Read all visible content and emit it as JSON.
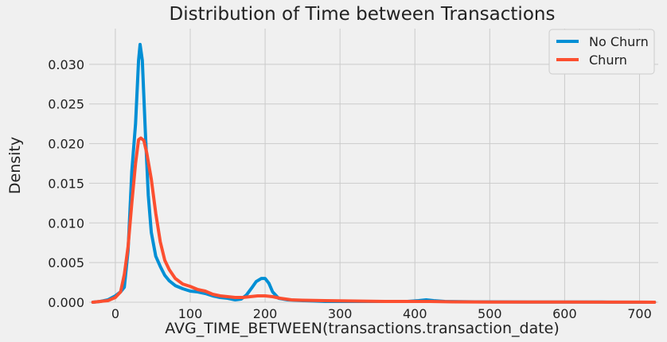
{
  "chart_data": {
    "type": "line",
    "title": "Distribution of Time between Transactions",
    "xlabel": "AVG_TIME_BETWEEN(transactions.transaction_date)",
    "ylabel": "Density",
    "xlim": [
      -35,
      725
    ],
    "ylim": [
      0,
      0.0345
    ],
    "xticks": [
      0,
      100,
      200,
      300,
      400,
      500,
      600,
      700
    ],
    "xtick_labels": [
      "0",
      "100",
      "200",
      "300",
      "400",
      "500",
      "600",
      "700"
    ],
    "yticks": [
      0,
      0.005,
      0.01,
      0.015,
      0.02,
      0.025,
      0.03
    ],
    "ytick_labels": [
      "0.000",
      "0.005",
      "0.010",
      "0.015",
      "0.020",
      "0.025",
      "0.030"
    ],
    "grid": true,
    "legend_position": "top-right",
    "series": [
      {
        "name": "No Churn",
        "color": "#008fd5",
        "points": [
          [
            -30,
            0
          ],
          [
            -20,
            0.0001
          ],
          [
            -10,
            0.0003
          ],
          [
            0,
            0.0008
          ],
          [
            7,
            0.0013
          ],
          [
            12,
            0.0019
          ],
          [
            17,
            0.0065
          ],
          [
            22,
            0.0165
          ],
          [
            27,
            0.0225
          ],
          [
            31,
            0.0305
          ],
          [
            33,
            0.0325
          ],
          [
            36,
            0.0305
          ],
          [
            40,
            0.0215
          ],
          [
            44,
            0.0135
          ],
          [
            48,
            0.0088
          ],
          [
            54,
            0.0058
          ],
          [
            60,
            0.0045
          ],
          [
            66,
            0.0034
          ],
          [
            72,
            0.0027
          ],
          [
            80,
            0.0021
          ],
          [
            90,
            0.0017
          ],
          [
            100,
            0.0014
          ],
          [
            110,
            0.0013
          ],
          [
            120,
            0.0011
          ],
          [
            130,
            0.0008
          ],
          [
            140,
            0.0006
          ],
          [
            150,
            0.0005
          ],
          [
            160,
            0.0003
          ],
          [
            168,
            0.0004
          ],
          [
            175,
            0.0009
          ],
          [
            182,
            0.0018
          ],
          [
            188,
            0.0026
          ],
          [
            195,
            0.003
          ],
          [
            200,
            0.003
          ],
          [
            205,
            0.0024
          ],
          [
            210,
            0.0013
          ],
          [
            218,
            0.0005
          ],
          [
            230,
            0.0003
          ],
          [
            250,
            0.0002
          ],
          [
            280,
            0.0001
          ],
          [
            320,
            0.0001
          ],
          [
            360,
            0.0001
          ],
          [
            390,
            0.0001
          ],
          [
            405,
            0.0002
          ],
          [
            415,
            0.0003
          ],
          [
            425,
            0.0002
          ],
          [
            440,
            0.0001
          ],
          [
            480,
            5e-05
          ],
          [
            550,
            3e-05
          ],
          [
            650,
            2e-05
          ],
          [
            720,
            0
          ]
        ]
      },
      {
        "name": "Churn",
        "color": "#fc4f30",
        "points": [
          [
            -30,
            0
          ],
          [
            -20,
            0.0001
          ],
          [
            -10,
            0.0002
          ],
          [
            0,
            0.0006
          ],
          [
            7,
            0.0013
          ],
          [
            12,
            0.0035
          ],
          [
            17,
            0.007
          ],
          [
            22,
            0.0125
          ],
          [
            27,
            0.0175
          ],
          [
            31,
            0.0205
          ],
          [
            34,
            0.0207
          ],
          [
            38,
            0.0204
          ],
          [
            42,
            0.0188
          ],
          [
            48,
            0.0155
          ],
          [
            54,
            0.0112
          ],
          [
            60,
            0.0076
          ],
          [
            66,
            0.0053
          ],
          [
            72,
            0.0041
          ],
          [
            80,
            0.003
          ],
          [
            90,
            0.0023
          ],
          [
            100,
            0.002
          ],
          [
            110,
            0.0016
          ],
          [
            120,
            0.0014
          ],
          [
            130,
            0.001
          ],
          [
            140,
            0.0008
          ],
          [
            150,
            0.0007
          ],
          [
            160,
            0.0006
          ],
          [
            170,
            0.0006
          ],
          [
            180,
            0.0007
          ],
          [
            190,
            0.0008
          ],
          [
            200,
            0.0008
          ],
          [
            210,
            0.0007
          ],
          [
            220,
            0.0005
          ],
          [
            235,
            0.0003
          ],
          [
            250,
            0.00025
          ],
          [
            280,
            0.0002
          ],
          [
            320,
            0.00015
          ],
          [
            360,
            0.0001
          ],
          [
            400,
            0.0001
          ],
          [
            420,
            0.0001
          ],
          [
            450,
            5e-05
          ],
          [
            500,
            3e-05
          ],
          [
            600,
            2e-05
          ],
          [
            700,
            1e-05
          ],
          [
            720,
            0
          ]
        ]
      }
    ]
  }
}
